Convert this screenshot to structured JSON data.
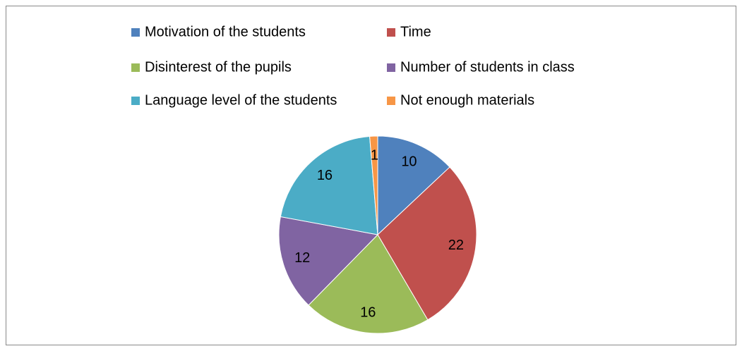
{
  "chart_data": {
    "type": "pie",
    "categories": [
      "Motivation of the students",
      "Time",
      "Disinterest of the pupils",
      "Number of students in class",
      "Language level of the students",
      "Not enough materials"
    ],
    "values": [
      10,
      22,
      16,
      12,
      16,
      1
    ],
    "colors": [
      "#4f81bd",
      "#c0504d",
      "#9bbb59",
      "#8064a2",
      "#4bacc6",
      "#f79646"
    ],
    "legend": "top"
  }
}
